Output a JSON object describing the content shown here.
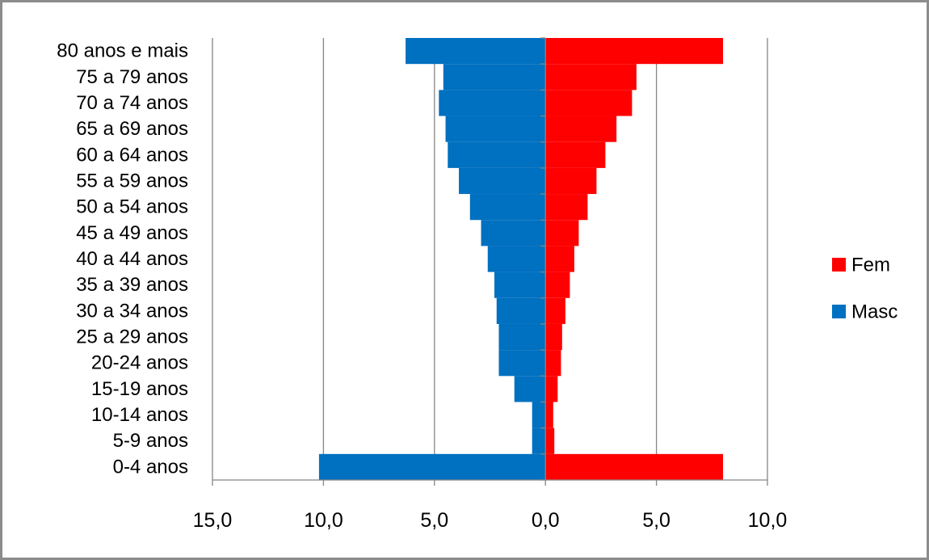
{
  "chart_data": {
    "type": "bar",
    "orientation": "horizontal",
    "title": "",
    "xlabel": "",
    "ylabel": "",
    "categories": [
      "80 anos e mais",
      "75 a 79 anos",
      "70 a 74 anos",
      "65 a 69 anos",
      "60 a 64 anos",
      "55 a 59 anos",
      "50 a 54 anos",
      "45 a 49 anos",
      "40 a 44 anos",
      "35 a 39 anos",
      "30 a 34 anos",
      "25 a 29 anos",
      "20-24 anos",
      "15-19 anos",
      "10-14 anos",
      "5-9 anos",
      "0-4 anos"
    ],
    "series": [
      {
        "name": "Fem",
        "color": "#ff0000",
        "values": [
          8.0,
          4.1,
          3.9,
          3.2,
          2.7,
          2.3,
          1.9,
          1.5,
          1.3,
          1.1,
          0.9,
          0.75,
          0.7,
          0.55,
          0.35,
          0.4,
          8.0
        ]
      },
      {
        "name": "Masc",
        "color": "#0070c0",
        "values": [
          -6.3,
          -4.6,
          -4.8,
          -4.5,
          -4.4,
          -3.9,
          -3.4,
          -2.9,
          -2.6,
          -2.3,
          -2.2,
          -2.1,
          -2.1,
          -1.4,
          -0.6,
          -0.6,
          -10.2
        ]
      }
    ],
    "xlim": [
      -15,
      10
    ],
    "x_ticks": [
      -15,
      -10,
      -5,
      0,
      5,
      10
    ],
    "x_tick_labels": [
      "15,0",
      "10,0",
      "5,0",
      "0,0",
      "5,0",
      "10,0"
    ],
    "grid": "vertical",
    "legend_position": "right"
  }
}
